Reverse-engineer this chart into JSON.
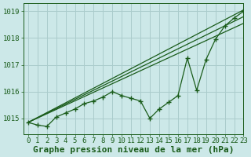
{
  "title": "Graphe pression niveau de la mer (hPa)",
  "bg_color": "#cce8e8",
  "grid_color": "#aacccc",
  "line_color": "#1a5c1a",
  "marker_color": "#1a5c1a",
  "xlim": [
    -0.5,
    23
  ],
  "ylim": [
    1014.4,
    1019.3
  ],
  "yticks": [
    1015,
    1016,
    1017,
    1018,
    1019
  ],
  "xticks": [
    0,
    1,
    2,
    3,
    4,
    5,
    6,
    7,
    8,
    9,
    10,
    11,
    12,
    13,
    14,
    15,
    16,
    17,
    18,
    19,
    20,
    21,
    22,
    23
  ],
  "series_lines": [
    [
      [
        0,
        23
      ],
      [
        1014.85,
        1019.05
      ]
    ],
    [
      [
        0,
        23
      ],
      [
        1014.85,
        1018.8
      ]
    ],
    [
      [
        0,
        23
      ],
      [
        1014.85,
        1018.55
      ]
    ]
  ],
  "series_markers": [
    [
      1014.85,
      1014.75,
      1014.7,
      1015.05,
      1015.2,
      1015.35,
      1015.55,
      1015.65,
      1015.8,
      1016.0,
      1015.85,
      1015.75,
      1015.65,
      1015.0,
      1015.35,
      1015.6,
      1015.85,
      1017.25,
      1016.05,
      1017.2,
      1017.95,
      1018.45,
      1018.75,
      1019.0
    ]
  ],
  "title_fontsize": 8,
  "tick_fontsize": 6.5,
  "title_color": "#1a5c1a",
  "tick_color": "#1a5c1a",
  "axis_label_color": "#1a5c1a"
}
